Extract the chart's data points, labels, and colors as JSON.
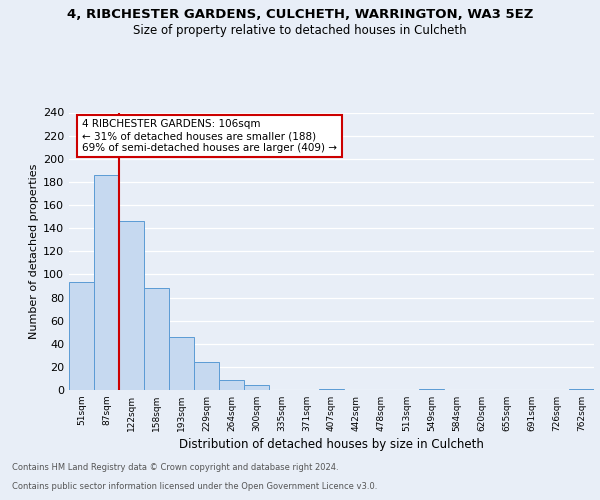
{
  "title": "4, RIBCHESTER GARDENS, CULCHETH, WARRINGTON, WA3 5EZ",
  "subtitle": "Size of property relative to detached houses in Culcheth",
  "xlabel": "Distribution of detached houses by size in Culcheth",
  "ylabel": "Number of detached properties",
  "bin_labels": [
    "51sqm",
    "87sqm",
    "122sqm",
    "158sqm",
    "193sqm",
    "229sqm",
    "264sqm",
    "300sqm",
    "335sqm",
    "371sqm",
    "407sqm",
    "442sqm",
    "478sqm",
    "513sqm",
    "549sqm",
    "584sqm",
    "620sqm",
    "655sqm",
    "691sqm",
    "726sqm",
    "762sqm"
  ],
  "bar_heights": [
    93,
    186,
    146,
    88,
    46,
    24,
    9,
    4,
    0,
    0,
    1,
    0,
    0,
    0,
    1,
    0,
    0,
    0,
    0,
    0,
    1
  ],
  "bar_color": "#c6d9f0",
  "bar_edge_color": "#5b9bd5",
  "vline_color": "#cc0000",
  "annotation_text": "4 RIBCHESTER GARDENS: 106sqm\n← 31% of detached houses are smaller (188)\n69% of semi-detached houses are larger (409) →",
  "annotation_box_color": "#ffffff",
  "annotation_box_edge": "#cc0000",
  "ylim": [
    0,
    240
  ],
  "yticks": [
    0,
    20,
    40,
    60,
    80,
    100,
    120,
    140,
    160,
    180,
    200,
    220,
    240
  ],
  "footer_line1": "Contains HM Land Registry data © Crown copyright and database right 2024.",
  "footer_line2": "Contains public sector information licensed under the Open Government Licence v3.0.",
  "bg_color": "#e8eef7",
  "plot_bg_color": "#e8eef7"
}
